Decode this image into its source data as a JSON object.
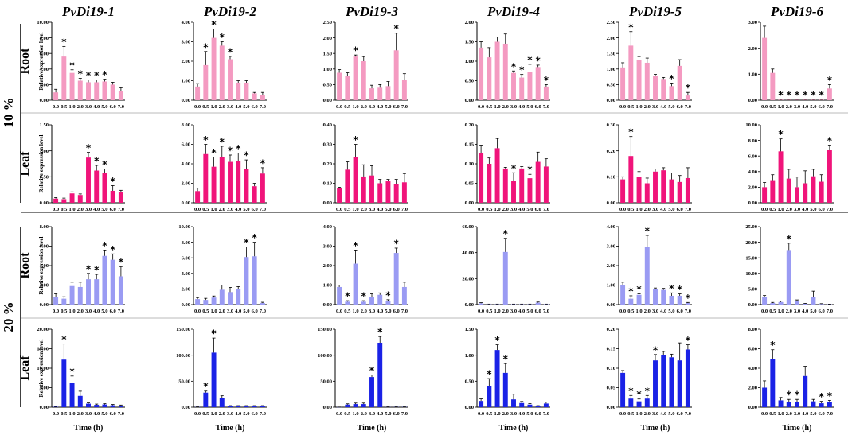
{
  "chart_data": {
    "type": "bar",
    "title": "",
    "genes": [
      "PvDi19-1",
      "PvDi19-2",
      "PvDi19-3",
      "PvDi19-4",
      "PvDi19-5",
      "PvDi19-6"
    ],
    "conditions": [
      "10 %",
      "20 %"
    ],
    "tissues": [
      "Root",
      "Leaf"
    ],
    "categories": [
      "0.0",
      "0.5",
      "1.0",
      "2.0",
      "3.0",
      "4.0",
      "5.0",
      "6.0",
      "7.0"
    ],
    "xlabel": "Time (h)",
    "ylabel": "Relative expression level",
    "significance_marker": "*",
    "colors": {
      "root_10": "#f49ac1",
      "leaf_10": "#f0147a",
      "root_20": "#9a9bf3",
      "leaf_20": "#1a22e6",
      "error_bar": "#000000"
    },
    "panels": [
      {
        "gene": "PvDi19-1",
        "condition": "10 %",
        "tissue": "Root",
        "ylim": [
          0,
          10
        ],
        "yticks": [
          "0.00",
          "2.00",
          "4.00",
          "6.00",
          "8.00",
          "10.00"
        ],
        "values": [
          1.0,
          5.6,
          3.5,
          2.5,
          2.3,
          2.3,
          2.4,
          2.0,
          1.2
        ],
        "errors": [
          0.4,
          1.3,
          0.4,
          0.3,
          0.3,
          0.3,
          0.3,
          0.3,
          0.4
        ],
        "sig": [
          0,
          1,
          1,
          1,
          1,
          1,
          1,
          0,
          0
        ]
      },
      {
        "gene": "PvDi19-2",
        "condition": "10 %",
        "tissue": "Root",
        "ylim": [
          0,
          4
        ],
        "yticks": [
          "0.00",
          "1.00",
          "2.00",
          "3.00",
          "4.00"
        ],
        "values": [
          0.7,
          1.8,
          3.2,
          2.8,
          2.1,
          0.9,
          0.9,
          0.35,
          0.25
        ],
        "errors": [
          0.15,
          0.7,
          0.45,
          0.2,
          0.15,
          0.1,
          0.1,
          0.05,
          0.15
        ],
        "sig": [
          0,
          1,
          1,
          1,
          1,
          0,
          0,
          0,
          0
        ]
      },
      {
        "gene": "PvDi19-3",
        "condition": "10 %",
        "tissue": "Root",
        "ylim": [
          0,
          2.5
        ],
        "yticks": [
          "0.00",
          "0.50",
          "1.00",
          "1.50",
          "2.00",
          "2.50"
        ],
        "values": [
          0.88,
          0.78,
          1.4,
          1.25,
          0.38,
          0.4,
          0.45,
          1.6,
          0.65
        ],
        "errors": [
          0.1,
          0.1,
          0.05,
          0.15,
          0.1,
          0.1,
          0.15,
          0.55,
          0.2
        ],
        "sig": [
          0,
          0,
          1,
          0,
          0,
          0,
          0,
          1,
          0
        ]
      },
      {
        "gene": "PvDi19-4",
        "condition": "10 %",
        "tissue": "Root",
        "ylim": [
          0,
          2
        ],
        "yticks": [
          "0.00",
          "0.50",
          "1.00",
          "1.50",
          "2.00"
        ],
        "values": [
          1.35,
          1.1,
          1.5,
          1.45,
          0.7,
          0.58,
          0.72,
          0.85,
          0.35
        ],
        "errors": [
          0.15,
          0.25,
          0.12,
          0.25,
          0.05,
          0.08,
          0.2,
          0.05,
          0.05
        ],
        "sig": [
          0,
          0,
          0,
          0,
          1,
          1,
          1,
          1,
          1
        ]
      },
      {
        "gene": "PvDi19-5",
        "condition": "10 %",
        "tissue": "Root",
        "ylim": [
          0,
          2.5
        ],
        "yticks": [
          "0.00",
          "0.50",
          "1.00",
          "1.50",
          "2.00",
          "2.50"
        ],
        "values": [
          1.05,
          1.75,
          1.3,
          1.2,
          0.78,
          0.68,
          0.45,
          1.1,
          0.15
        ],
        "errors": [
          0.15,
          0.45,
          0.1,
          0.15,
          0.05,
          0.05,
          0.1,
          0.2,
          0.1
        ],
        "sig": [
          0,
          1,
          0,
          0,
          0,
          0,
          1,
          0,
          1
        ]
      },
      {
        "gene": "PvDi19-6",
        "condition": "10 %",
        "tissue": "Root",
        "ylim": [
          0,
          3
        ],
        "yticks": [
          "0.00",
          "1.00",
          "2.00",
          "3.00"
        ],
        "values": [
          2.4,
          1.05,
          0.02,
          0.02,
          0.02,
          0.02,
          0.02,
          0.02,
          0.45
        ],
        "errors": [
          0.45,
          0.15,
          0.01,
          0.01,
          0.01,
          0.01,
          0.01,
          0.01,
          0.15
        ],
        "sig": [
          0,
          0,
          1,
          1,
          1,
          1,
          1,
          1,
          1
        ]
      },
      {
        "gene": "PvDi19-1",
        "condition": "10 %",
        "tissue": "Leaf",
        "ylim": [
          0,
          1.5
        ],
        "yticks": [
          "0.00",
          "0.50",
          "1.00",
          "1.50"
        ],
        "values": [
          0.08,
          0.07,
          0.18,
          0.15,
          0.87,
          0.62,
          0.57,
          0.23,
          0.2
        ],
        "errors": [
          0.02,
          0.02,
          0.03,
          0.02,
          0.1,
          0.1,
          0.08,
          0.1,
          0.04
        ],
        "sig": [
          0,
          0,
          0,
          0,
          1,
          1,
          1,
          1,
          0
        ]
      },
      {
        "gene": "PvDi19-2",
        "condition": "10 %",
        "tissue": "Leaf",
        "ylim": [
          0,
          8
        ],
        "yticks": [
          "0.00",
          "2.00",
          "4.00",
          "6.00",
          "8.00"
        ],
        "values": [
          1.2,
          5.0,
          3.7,
          4.7,
          4.2,
          4.3,
          3.5,
          1.7,
          3.0
        ],
        "errors": [
          0.3,
          1.0,
          1.0,
          1.1,
          0.7,
          0.8,
          0.9,
          0.3,
          0.6
        ],
        "sig": [
          0,
          1,
          1,
          1,
          1,
          1,
          1,
          0,
          1
        ]
      },
      {
        "gene": "PvDi19-3",
        "condition": "10 %",
        "tissue": "Leaf",
        "ylim": [
          0,
          0.4
        ],
        "yticks": [
          "0.00",
          "0.10",
          "0.20",
          "0.30",
          "0.40"
        ],
        "values": [
          0.075,
          0.17,
          0.235,
          0.135,
          0.14,
          0.1,
          0.11,
          0.095,
          0.105
        ],
        "errors": [
          0.005,
          0.04,
          0.065,
          0.06,
          0.05,
          0.02,
          0.01,
          0.025,
          0.045
        ],
        "sig": [
          0,
          0,
          1,
          0,
          0,
          0,
          0,
          0,
          0
        ]
      },
      {
        "gene": "PvDi19-4",
        "condition": "10 %",
        "tissue": "Leaf",
        "ylim": [
          0,
          0.2
        ],
        "yticks": [
          "0.00",
          "0.05",
          "0.10",
          "0.15",
          "0.20"
        ],
        "values": [
          0.128,
          0.1,
          0.14,
          0.088,
          0.057,
          0.088,
          0.063,
          0.105,
          0.093
        ],
        "errors": [
          0.02,
          0.015,
          0.025,
          0.003,
          0.02,
          0.005,
          0.01,
          0.025,
          0.02
        ],
        "sig": [
          0,
          0,
          0,
          0,
          1,
          0,
          1,
          0,
          0
        ]
      },
      {
        "gene": "PvDi19-5",
        "condition": "10 %",
        "tissue": "Leaf",
        "ylim": [
          0,
          0.3
        ],
        "yticks": [
          "0.00",
          "0.10",
          "0.20",
          "0.30"
        ],
        "values": [
          0.09,
          0.18,
          0.1,
          0.075,
          0.12,
          0.125,
          0.09,
          0.08,
          0.095
        ],
        "errors": [
          0.01,
          0.075,
          0.02,
          0.02,
          0.01,
          0.01,
          0.025,
          0.025,
          0.04
        ],
        "sig": [
          0,
          1,
          0,
          0,
          0,
          0,
          0,
          0,
          0
        ]
      },
      {
        "gene": "PvDi19-6",
        "condition": "10 %",
        "tissue": "Leaf",
        "ylim": [
          0,
          10
        ],
        "yticks": [
          "0.00",
          "2.00",
          "4.00",
          "6.00",
          "8.00",
          "10.00"
        ],
        "values": [
          2.0,
          2.9,
          6.6,
          3.1,
          2.0,
          2.5,
          3.4,
          2.7,
          6.8
        ],
        "errors": [
          0.6,
          0.7,
          1.6,
          1.2,
          1.3,
          1.6,
          0.9,
          0.9,
          0.6
        ],
        "sig": [
          0,
          0,
          1,
          0,
          0,
          0,
          0,
          0,
          1
        ]
      },
      {
        "gene": "PvDi19-1",
        "condition": "20 %",
        "tissue": "Root",
        "ylim": [
          0,
          8
        ],
        "yticks": [
          "0.00",
          "2.00",
          "4.00",
          "6.00",
          "8.00"
        ],
        "values": [
          0.8,
          0.6,
          1.9,
          1.8,
          2.6,
          2.6,
          5.0,
          4.6,
          2.9
        ],
        "errors": [
          0.3,
          0.2,
          0.4,
          0.5,
          0.6,
          0.5,
          0.6,
          0.6,
          1.0
        ],
        "sig": [
          0,
          0,
          0,
          0,
          1,
          1,
          1,
          1,
          1
        ]
      },
      {
        "gene": "PvDi19-2",
        "condition": "20 %",
        "tissue": "Root",
        "ylim": [
          0,
          10
        ],
        "yticks": [
          "0.00",
          "2.00",
          "4.00",
          "6.00",
          "8.00",
          "10.00"
        ],
        "values": [
          0.7,
          0.6,
          0.9,
          1.9,
          1.6,
          2.0,
          6.1,
          6.2,
          0.2
        ],
        "errors": [
          0.2,
          0.2,
          0.2,
          0.6,
          0.6,
          0.3,
          1.3,
          1.8,
          0.1
        ],
        "sig": [
          0,
          0,
          0,
          0,
          0,
          0,
          1,
          1,
          0
        ]
      },
      {
        "gene": "PvDi19-3",
        "condition": "20 %",
        "tissue": "Root",
        "ylim": [
          0,
          4
        ],
        "yticks": [
          "0.00",
          "1.00",
          "2.00",
          "3.00",
          "4.00"
        ],
        "values": [
          0.9,
          0.15,
          2.1,
          0.15,
          0.4,
          0.5,
          0.2,
          2.65,
          0.9
        ],
        "errors": [
          0.1,
          0.05,
          0.7,
          0.05,
          0.15,
          0.1,
          0.05,
          0.25,
          0.25
        ],
        "sig": [
          0,
          1,
          1,
          1,
          0,
          0,
          1,
          1,
          0
        ]
      },
      {
        "gene": "PvDi19-4",
        "condition": "20 %",
        "tissue": "Root",
        "ylim": [
          0,
          60
        ],
        "yticks": [
          "0.00",
          "20.00",
          "40.00",
          "60.00"
        ],
        "values": [
          1.0,
          0.3,
          0.3,
          40.5,
          0.3,
          0.3,
          0.3,
          1.5,
          0.3
        ],
        "errors": [
          0.5,
          0.1,
          0.1,
          10.5,
          0.1,
          0.1,
          0.1,
          0.5,
          0.1
        ],
        "sig": [
          0,
          0,
          0,
          1,
          0,
          0,
          0,
          0,
          0
        ]
      },
      {
        "gene": "PvDi19-5",
        "condition": "20 %",
        "tissue": "Root",
        "ylim": [
          0,
          4
        ],
        "yticks": [
          "0.00",
          "1.00",
          "2.00",
          "3.00",
          "4.00"
        ],
        "values": [
          1.0,
          0.3,
          0.5,
          2.95,
          0.8,
          0.75,
          0.45,
          0.45,
          0.08
        ],
        "errors": [
          0.15,
          0.15,
          0.05,
          0.6,
          0.05,
          0.08,
          0.15,
          0.1,
          0.03
        ],
        "sig": [
          0,
          1,
          1,
          1,
          0,
          0,
          1,
          1,
          1
        ]
      },
      {
        "gene": "PvDi19-6",
        "condition": "20 %",
        "tissue": "Root",
        "ylim": [
          0,
          25
        ],
        "yticks": [
          "0.00",
          "5.00",
          "10.00",
          "15.00",
          "20.00",
          "25.00"
        ],
        "values": [
          2.3,
          0.5,
          0.8,
          17.5,
          1.2,
          0.3,
          2.3,
          0.2,
          0.1
        ],
        "errors": [
          0.6,
          0.2,
          0.3,
          2.2,
          0.3,
          0.1,
          2.0,
          0.1,
          0.05
        ],
        "sig": [
          0,
          0,
          0,
          1,
          0,
          0,
          0,
          0,
          0
        ]
      },
      {
        "gene": "PvDi19-1",
        "condition": "20 %",
        "tissue": "Leaf",
        "ylim": [
          0,
          20
        ],
        "yticks": [
          "0.00",
          "5.00",
          "10.00",
          "15.00",
          "20.00"
        ],
        "values": [
          0.1,
          12.2,
          6.2,
          2.9,
          0.9,
          0.6,
          0.7,
          0.5,
          0.4
        ],
        "errors": [
          0.05,
          4.0,
          1.8,
          1.2,
          0.2,
          0.2,
          0.2,
          0.2,
          0.15
        ],
        "sig": [
          0,
          1,
          1,
          0,
          0,
          0,
          0,
          0,
          0
        ]
      },
      {
        "gene": "PvDi19-2",
        "condition": "20 %",
        "tissue": "Leaf",
        "ylim": [
          0,
          150
        ],
        "yticks": [
          "0.00",
          "50.00",
          "100.00",
          "150.00"
        ],
        "values": [
          0.5,
          28,
          105,
          17,
          2,
          2,
          2,
          2,
          2
        ],
        "errors": [
          0.2,
          3,
          28,
          5,
          1,
          1,
          1,
          1,
          1
        ],
        "sig": [
          0,
          1,
          1,
          0,
          0,
          0,
          0,
          0,
          0
        ]
      },
      {
        "gene": "PvDi19-3",
        "condition": "20 %",
        "tissue": "Leaf",
        "ylim": [
          0,
          150
        ],
        "yticks": [
          "0.00",
          "50.00",
          "100.00",
          "150.00"
        ],
        "values": [
          0.2,
          5,
          6,
          6,
          58,
          124,
          0.5,
          0.5,
          0.5
        ],
        "errors": [
          0.1,
          1.5,
          2,
          2,
          4,
          12,
          0.2,
          0.2,
          0.2
        ],
        "sig": [
          0,
          0,
          0,
          0,
          1,
          1,
          0,
          0,
          0
        ]
      },
      {
        "gene": "PvDi19-4",
        "condition": "20 %",
        "tissue": "Leaf",
        "ylim": [
          0,
          1.5
        ],
        "yticks": [
          "0.00",
          "0.50",
          "1.00",
          "1.50"
        ],
        "values": [
          0.12,
          0.4,
          1.1,
          0.66,
          0.15,
          0.08,
          0.05,
          0.02,
          0.07
        ],
        "errors": [
          0.04,
          0.15,
          0.1,
          0.18,
          0.1,
          0.03,
          0.02,
          0.01,
          0.03
        ],
        "sig": [
          0,
          1,
          1,
          1,
          0,
          0,
          0,
          0,
          0
        ]
      },
      {
        "gene": "PvDi19-5",
        "condition": "20 %",
        "tissue": "Leaf",
        "ylim": [
          0,
          0.2
        ],
        "yticks": [
          "0.00",
          "0.05",
          "0.10",
          "0.15",
          "0.20"
        ],
        "values": [
          0.088,
          0.022,
          0.015,
          0.022,
          0.12,
          0.133,
          0.128,
          0.12,
          0.148
        ],
        "errors": [
          0.006,
          0.008,
          0.006,
          0.008,
          0.015,
          0.01,
          0.008,
          0.045,
          0.012
        ],
        "sig": [
          0,
          1,
          1,
          1,
          1,
          0,
          0,
          0,
          1
        ]
      },
      {
        "gene": "PvDi19-6",
        "condition": "20 %",
        "tissue": "Leaf",
        "ylim": [
          0,
          8
        ],
        "yticks": [
          "0.00",
          "2.00",
          "4.00",
          "6.00",
          "8.00"
        ],
        "values": [
          2.0,
          4.9,
          0.7,
          0.5,
          0.5,
          3.2,
          0.6,
          0.4,
          0.5
        ],
        "errors": [
          0.7,
          1.0,
          0.3,
          0.3,
          0.3,
          1.0,
          0.2,
          0.2,
          0.2
        ],
        "sig": [
          0,
          1,
          0,
          1,
          1,
          0,
          0,
          1,
          1
        ]
      }
    ]
  }
}
